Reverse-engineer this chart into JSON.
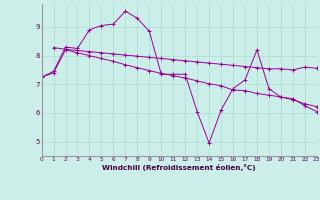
{
  "xlabel": "Windchill (Refroidissement éolien,°C)",
  "bg_color": "#cceee8",
  "grid_color": "#aaddcc",
  "line_color": "#990099",
  "xlim": [
    0,
    23
  ],
  "ylim": [
    4.5,
    9.8
  ],
  "yticks": [
    5,
    6,
    7,
    8,
    9
  ],
  "xticks": [
    0,
    1,
    2,
    3,
    4,
    5,
    6,
    7,
    8,
    9,
    10,
    11,
    12,
    13,
    14,
    15,
    16,
    17,
    18,
    19,
    20,
    21,
    22,
    23
  ],
  "line1_x": [
    0,
    1,
    2,
    3,
    4,
    5,
    6,
    7,
    8,
    9,
    10,
    11,
    12,
    13,
    14,
    15,
    16,
    17,
    18,
    19,
    20,
    21,
    22,
    23
  ],
  "line1_y": [
    7.25,
    7.45,
    8.3,
    8.25,
    8.9,
    9.05,
    9.1,
    9.55,
    9.3,
    8.85,
    7.35,
    7.35,
    7.35,
    6.05,
    4.95,
    6.1,
    6.85,
    7.15,
    8.2,
    6.85,
    6.55,
    6.5,
    6.25,
    6.05
  ],
  "line2_x": [
    1,
    2,
    3,
    4,
    5,
    6,
    7,
    8,
    9,
    10,
    11,
    12,
    13,
    14,
    15,
    16,
    17,
    18,
    19,
    20,
    21,
    22,
    23
  ],
  "line2_y": [
    8.28,
    8.22,
    8.18,
    8.14,
    8.1,
    8.06,
    8.02,
    7.98,
    7.94,
    7.9,
    7.86,
    7.82,
    7.78,
    7.74,
    7.7,
    7.66,
    7.62,
    7.58,
    7.54,
    7.54,
    7.5,
    7.6,
    7.56
  ],
  "line3_x": [
    0,
    1,
    2,
    3,
    4,
    5,
    6,
    7,
    8,
    9,
    10,
    11,
    12,
    13,
    14,
    15,
    16,
    17,
    18,
    19,
    20,
    21,
    22,
    23
  ],
  "line3_y": [
    7.25,
    7.4,
    8.2,
    8.1,
    8.0,
    7.9,
    7.8,
    7.68,
    7.58,
    7.48,
    7.38,
    7.3,
    7.22,
    7.12,
    7.02,
    6.95,
    6.8,
    6.78,
    6.68,
    6.62,
    6.56,
    6.46,
    6.32,
    6.22
  ]
}
